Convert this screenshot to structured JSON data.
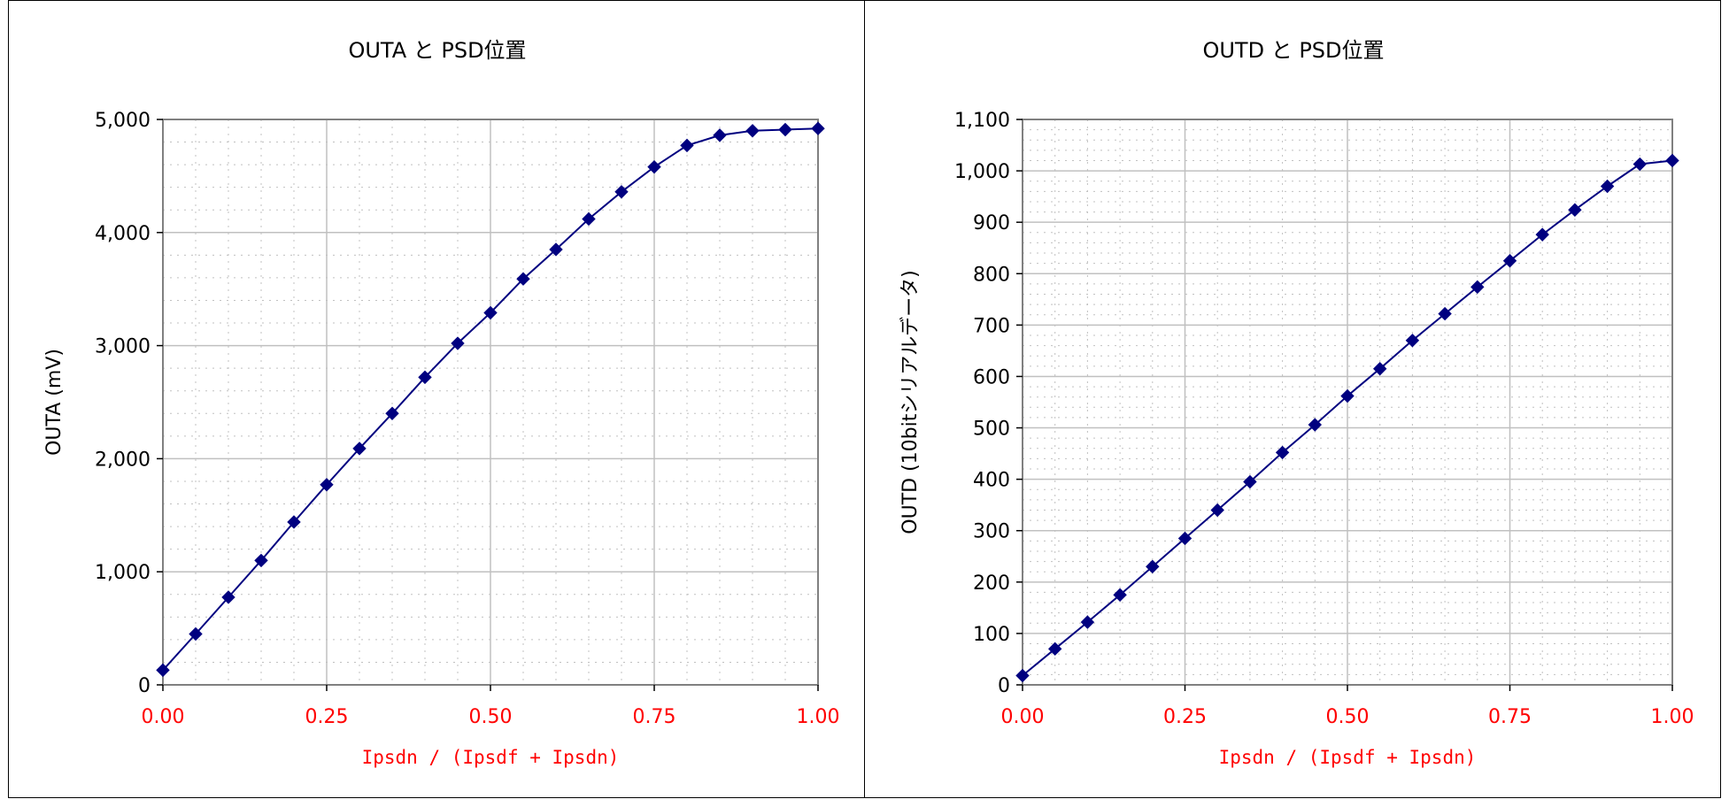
{
  "colors": {
    "series": "#000080",
    "x_axis_text": "#ff0000",
    "grid_major": "#c0c0c0",
    "grid_minor": "#c0c0c0",
    "frame": "#808080"
  },
  "chart_data": [
    {
      "type": "line",
      "title": "OUTA と PSD位置",
      "xlabel": "Ipsdn / (Ipsdf + Ipsdn)",
      "ylabel": "OUTA (mV)",
      "xlim": [
        0,
        1
      ],
      "ylim": [
        0,
        5000
      ],
      "x_ticks": [
        "0.00",
        "0.25",
        "0.50",
        "0.75",
        "1.00"
      ],
      "y_ticks": [
        "0",
        "1,000",
        "2,000",
        "3,000",
        "4,000",
        "5,000"
      ],
      "grid": true,
      "marker": "diamond",
      "x": [
        0,
        0.05,
        0.1,
        0.15,
        0.2,
        0.25,
        0.3,
        0.35,
        0.4,
        0.45,
        0.5,
        0.55,
        0.6,
        0.65,
        0.7,
        0.75,
        0.8,
        0.85,
        0.9,
        0.95,
        1.0
      ],
      "y": [
        130,
        450,
        775,
        1100,
        1440,
        1770,
        2090,
        2400,
        2720,
        3020,
        3290,
        3590,
        3850,
        4120,
        4360,
        4580,
        4770,
        4860,
        4900,
        4910,
        4920
      ]
    },
    {
      "type": "line",
      "title": "OUTD と PSD位置",
      "xlabel": "Ipsdn / (Ipsdf + Ipsdn)",
      "ylabel": "OUTD (10bitシリアルデータ)",
      "xlim": [
        0,
        1
      ],
      "ylim": [
        0,
        1100
      ],
      "x_ticks": [
        "0.00",
        "0.25",
        "0.50",
        "0.75",
        "1.00"
      ],
      "y_ticks": [
        "0",
        "100",
        "200",
        "300",
        "400",
        "500",
        "600",
        "700",
        "800",
        "900",
        "1,000",
        "1,100"
      ],
      "grid": true,
      "marker": "diamond",
      "x": [
        0,
        0.05,
        0.1,
        0.15,
        0.2,
        0.25,
        0.3,
        0.35,
        0.4,
        0.45,
        0.5,
        0.55,
        0.6,
        0.65,
        0.7,
        0.75,
        0.8,
        0.85,
        0.9,
        0.95,
        1.0
      ],
      "y": [
        18,
        70,
        122,
        175,
        230,
        285,
        340,
        395,
        452,
        506,
        562,
        615,
        670,
        722,
        774,
        825,
        876,
        924,
        970,
        1013,
        1020
      ]
    }
  ]
}
